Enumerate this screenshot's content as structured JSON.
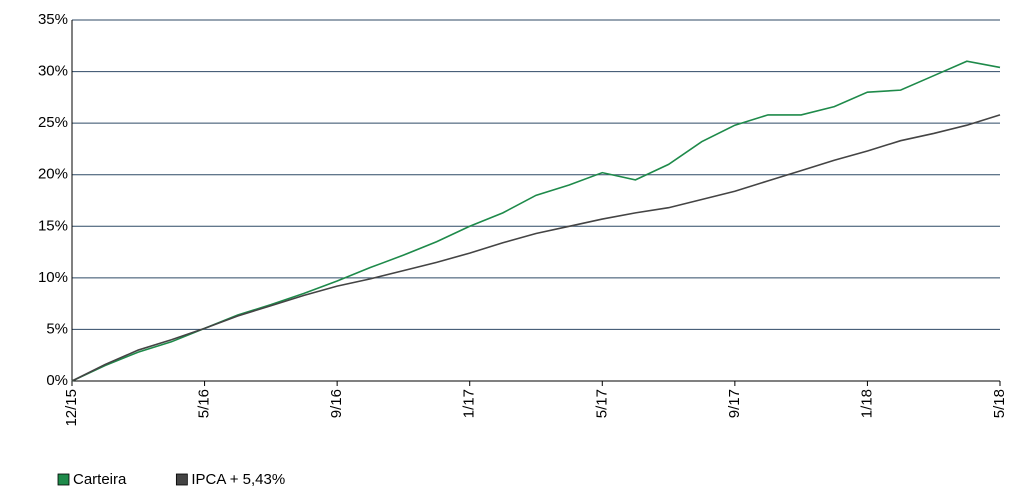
{
  "chart_data": {
    "type": "line",
    "categories": [
      "12/15",
      null,
      null,
      null,
      "5/16",
      null,
      null,
      null,
      "9/16",
      null,
      null,
      null,
      "1/17",
      null,
      null,
      null,
      "5/17",
      null,
      null,
      null,
      "9/17",
      null,
      null,
      null,
      "1/18",
      null,
      null,
      null,
      "5/18"
    ],
    "series": [
      {
        "name": "Carteira",
        "color": "#1e8a4a",
        "values": [
          0,
          1.5,
          2.8,
          3.8,
          5.1,
          6.4,
          7.4,
          8.5,
          9.7,
          11.0,
          12.2,
          13.5,
          15.0,
          16.3,
          18.0,
          19.0,
          20.2,
          19.5,
          21.0,
          23.2,
          24.8,
          25.8,
          25.8,
          26.6,
          28.0,
          28.2,
          29.6,
          31.0,
          30.4
        ]
      },
      {
        "name": "IPCA + 5,43%",
        "color": "#444444",
        "values": [
          0,
          1.6,
          3.0,
          4.0,
          5.1,
          6.3,
          7.3,
          8.3,
          9.2,
          9.9,
          10.7,
          11.5,
          12.4,
          13.4,
          14.3,
          15.0,
          15.7,
          16.3,
          16.8,
          17.6,
          18.4,
          19.4,
          20.4,
          21.4,
          22.3,
          23.3,
          24.0,
          24.8,
          25.8
        ]
      }
    ],
    "ylim": [
      0,
      35
    ],
    "yticks": [
      {
        "value": 0,
        "label": "0%"
      },
      {
        "value": 5,
        "label": "5%"
      },
      {
        "value": 10,
        "label": "10%"
      },
      {
        "value": 15,
        "label": "15%"
      },
      {
        "value": 20,
        "label": "20%"
      },
      {
        "value": 25,
        "label": "25%"
      },
      {
        "value": 30,
        "label": "30%"
      },
      {
        "value": 35,
        "label": "35%"
      }
    ],
    "grid": true,
    "legend": "bottom-left"
  }
}
